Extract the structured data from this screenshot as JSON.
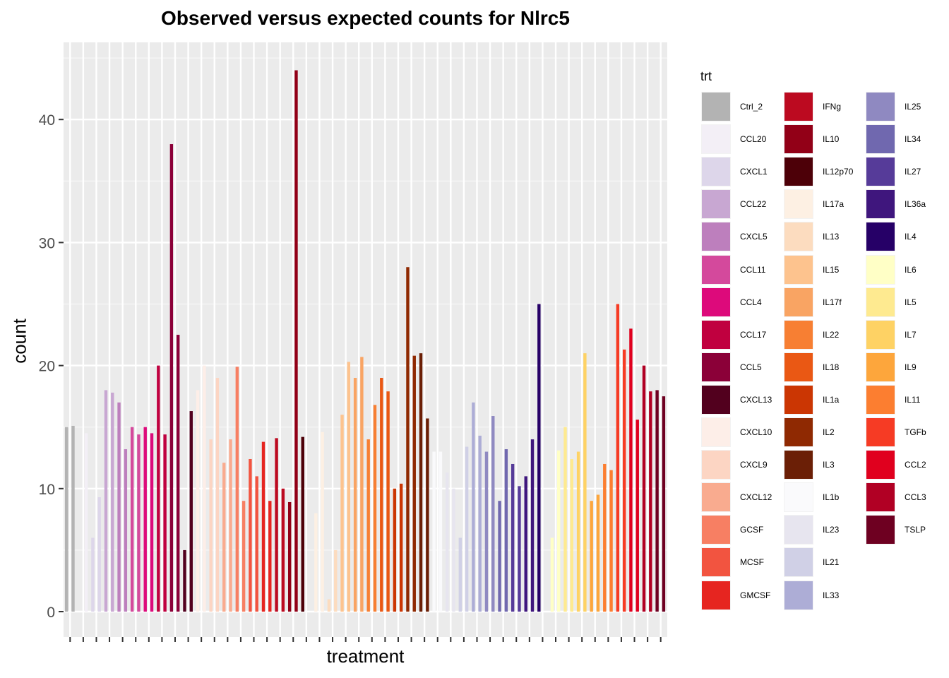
{
  "chart_data": {
    "type": "bar",
    "title": "Observed versus expected counts for Nlrc5",
    "xlabel": "treatment",
    "ylabel": "count",
    "ylim": [
      -2,
      47
    ],
    "yticks": [
      0,
      10,
      20,
      30,
      40
    ],
    "grid": true,
    "legend_title": "trt",
    "legend_position": "right",
    "groups": [
      {
        "trt": "Ctrl_2",
        "color": "#b3b3b3",
        "values": [
          15.0,
          15.1
        ]
      },
      {
        "trt": "CCL20",
        "color": "#f3eff6",
        "values": [
          0,
          14.5
        ]
      },
      {
        "trt": "CXCL1",
        "color": "#ddd6ea",
        "values": [
          6.0,
          9.3
        ]
      },
      {
        "trt": "CCL22",
        "color": "#c8a7d2",
        "values": [
          18.0,
          17.8
        ]
      },
      {
        "trt": "CXCL5",
        "color": "#bd7fbd",
        "values": [
          17.0,
          13.2
        ]
      },
      {
        "trt": "CCL11",
        "color": "#d4499c",
        "values": [
          15.0,
          14.4
        ]
      },
      {
        "trt": "CCL4",
        "color": "#dd0a7b",
        "values": [
          15.0,
          14.5
        ]
      },
      {
        "trt": "CCL17",
        "color": "#c0003f",
        "values": [
          20.0,
          14.4
        ]
      },
      {
        "trt": "CCL5",
        "color": "#8b0038",
        "values": [
          38.0,
          22.5
        ]
      },
      {
        "trt": "CXCL13",
        "color": "#52001e",
        "values": [
          5.0,
          16.3
        ]
      },
      {
        "trt": "CXCL10",
        "color": "#fdeee8",
        "values": [
          18.0,
          20.0
        ]
      },
      {
        "trt": "CXCL9",
        "color": "#fcd5c3",
        "values": [
          14.0,
          19.0
        ]
      },
      {
        "trt": "CXCL12",
        "color": "#f9ab8f",
        "values": [
          12.1,
          14.0
        ]
      },
      {
        "trt": "GCSF",
        "color": "#f77f63",
        "values": [
          19.9,
          9.0
        ]
      },
      {
        "trt": "MCSF",
        "color": "#f25440",
        "values": [
          12.4,
          11.0
        ]
      },
      {
        "trt": "GMCSF",
        "color": "#e62520",
        "values": [
          13.8,
          9.0
        ]
      },
      {
        "trt": "IFNg",
        "color": "#bc0a20",
        "values": [
          14.1,
          10.0
        ]
      },
      {
        "trt": "IL10",
        "color": "#920017",
        "values": [
          8.9,
          44.0
        ]
      },
      {
        "trt": "IL12p70",
        "color": "#4d0008",
        "values": [
          14.2,
          0
        ]
      },
      {
        "trt": "IL17a",
        "color": "#fdf0e3",
        "values": [
          8.0,
          14.6
        ]
      },
      {
        "trt": "IL13",
        "color": "#fcdcbf",
        "values": [
          1.0,
          5.0
        ]
      },
      {
        "trt": "IL15",
        "color": "#fdc38e",
        "values": [
          16.0,
          20.3
        ]
      },
      {
        "trt": "IL17f",
        "color": "#f9a463",
        "values": [
          19.0,
          20.7
        ]
      },
      {
        "trt": "IL22",
        "color": "#f77f33",
        "values": [
          14.0,
          16.8
        ]
      },
      {
        "trt": "IL18",
        "color": "#ea5814",
        "values": [
          19.0,
          17.9
        ]
      },
      {
        "trt": "IL1a",
        "color": "#cb3603",
        "values": [
          10.0,
          10.4
        ]
      },
      {
        "trt": "IL2",
        "color": "#8f2902",
        "values": [
          28.0,
          20.8
        ]
      },
      {
        "trt": "IL3",
        "color": "#6b1f06",
        "values": [
          21.0,
          15.7
        ]
      },
      {
        "trt": "IL1b",
        "color": "#fafafc",
        "values": [
          13.0,
          13.0
        ]
      },
      {
        "trt": "IL23",
        "color": "#e7e5ef",
        "values": [
          11.3,
          10.0
        ]
      },
      {
        "trt": "IL21",
        "color": "#d0d0e6",
        "values": [
          6.0,
          13.4
        ]
      },
      {
        "trt": "IL33",
        "color": "#adadd6",
        "values": [
          17.0,
          14.3
        ]
      },
      {
        "trt": "IL25",
        "color": "#8f89c1",
        "values": [
          13.0,
          15.9
        ]
      },
      {
        "trt": "IL34",
        "color": "#7068af",
        "values": [
          9.0,
          13.2
        ]
      },
      {
        "trt": "IL27",
        "color": "#563b99",
        "values": [
          12.0,
          10.2
        ]
      },
      {
        "trt": "IL36a",
        "color": "#3f167d",
        "values": [
          11.0,
          14.0
        ]
      },
      {
        "trt": "IL4",
        "color": "#260067",
        "values": [
          25.0,
          0
        ]
      },
      {
        "trt": "IL6",
        "color": "#ffffc6",
        "values": [
          6.0,
          13.1
        ]
      },
      {
        "trt": "IL5",
        "color": "#feea90",
        "values": [
          15.0,
          12.4
        ]
      },
      {
        "trt": "IL7",
        "color": "#fed264",
        "values": [
          13.0,
          21.0
        ]
      },
      {
        "trt": "IL9",
        "color": "#fda63c",
        "values": [
          9.0,
          9.5
        ]
      },
      {
        "trt": "IL11",
        "color": "#fc7e30",
        "values": [
          12.0,
          11.5
        ]
      },
      {
        "trt": "TGFb",
        "color": "#f63b24",
        "values": [
          25.0,
          21.3
        ]
      },
      {
        "trt": "CCL2",
        "color": "#e0001e",
        "values": [
          23.0,
          15.6
        ]
      },
      {
        "trt": "CCL3",
        "color": "#b10024",
        "values": [
          20.0,
          17.9
        ]
      },
      {
        "trt": "TSLP",
        "color": "#6e0021",
        "values": [
          18.0,
          17.5
        ]
      }
    ]
  }
}
